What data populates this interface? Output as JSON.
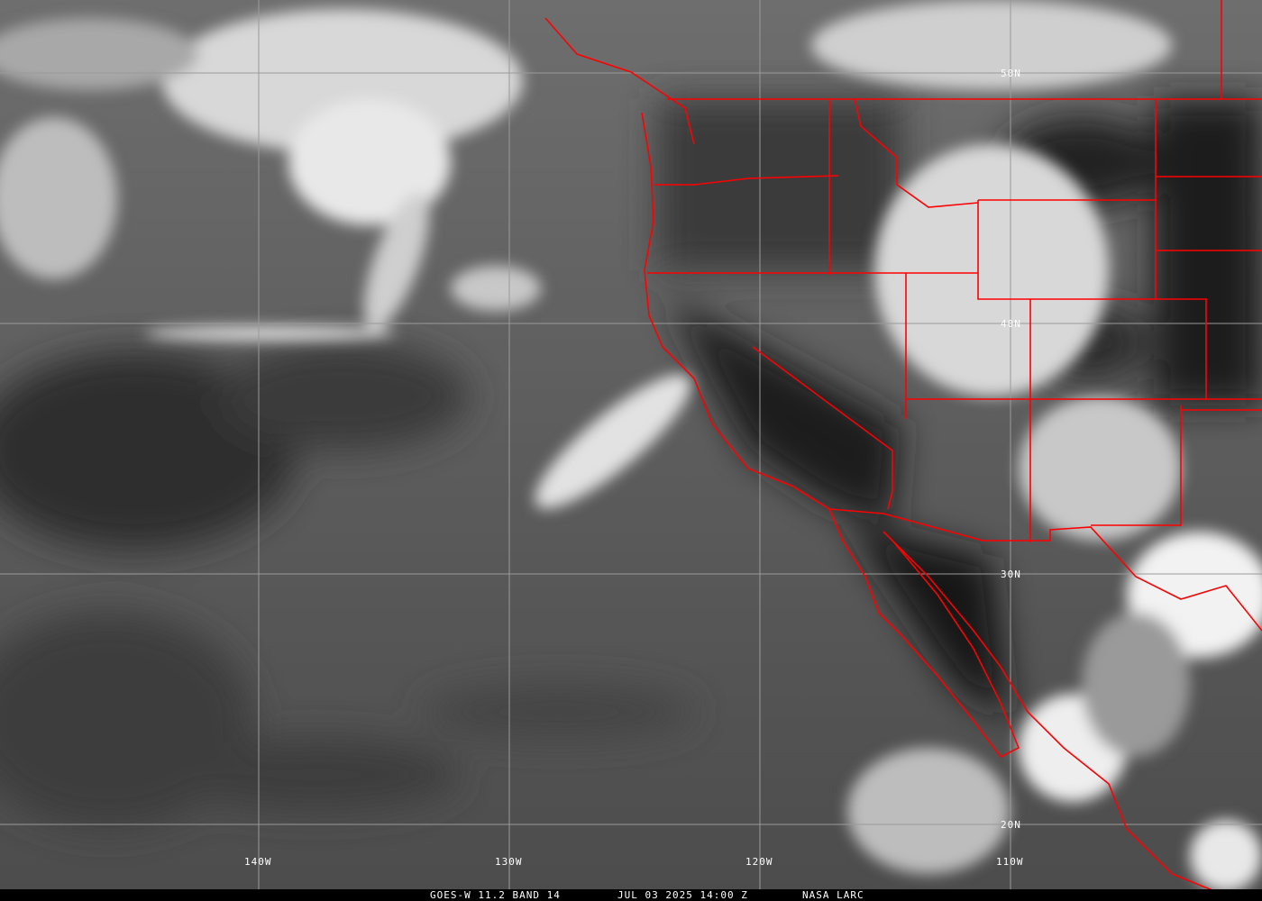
{
  "image": {
    "type": "satellite-infrared",
    "region": "Northeast Pacific and Western North America"
  },
  "grid": {
    "longitudes": [
      "140W",
      "130W",
      "120W",
      "110W"
    ],
    "latitudes": [
      "50N",
      "40N",
      "30N",
      "20N"
    ],
    "line_color": "#9a9a9a"
  },
  "overlay": {
    "border_color": "#ff0000"
  },
  "caption": {
    "satellite": "GOES-W 11.2 BAND 14",
    "datetime": "JUL 03 2025 14:00 Z",
    "source": "NASA LARC"
  }
}
